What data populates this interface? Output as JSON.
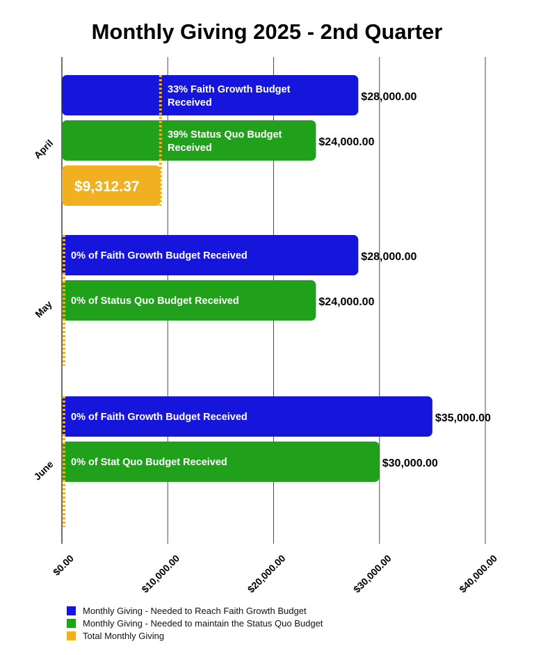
{
  "chart_data": {
    "type": "bar",
    "orientation": "horizontal",
    "title": "Monthly Giving 2025 - 2nd Quarter",
    "categories": [
      "April",
      "May",
      "June"
    ],
    "xlim": [
      0,
      40000
    ],
    "x_ticks": [
      0,
      10000,
      20000,
      30000,
      40000
    ],
    "x_tick_labels": [
      "$0.00",
      "$10,000.00",
      "$20,000.00",
      "$30,000.00",
      "$40,000.00"
    ],
    "grid": true,
    "legend_position": "bottom-left",
    "series": [
      {
        "name": "Monthly Giving - Needed to Reach Faith Growth Budget",
        "color": "#1515dc",
        "values": [
          28000,
          28000,
          35000
        ],
        "value_labels": [
          "$28,000.00",
          "$28,000.00",
          "$35,000.00"
        ],
        "inner_labels": [
          "33% Faith Growth Budget Received",
          "0% of Faith Growth Budget Received",
          "0% of Faith Growth Budget Received"
        ]
      },
      {
        "name": "Monthly Giving - Needed to maintain the Status Quo Budget",
        "color": "#21a01c",
        "values": [
          24000,
          24000,
          30000
        ],
        "value_labels": [
          "$24,000.00",
          "$24,000.00",
          "$30,000.00"
        ],
        "inner_labels": [
          "39% Status Quo Budget Received",
          "0% of Status Quo Budget Received",
          "0% of Stat Quo Budget Received"
        ]
      },
      {
        "name": "Total Monthly Giving",
        "color": "#f0b020",
        "values": [
          9312.37,
          0,
          0
        ],
        "value_labels": [
          "$9,312.37",
          "",
          ""
        ]
      }
    ]
  }
}
